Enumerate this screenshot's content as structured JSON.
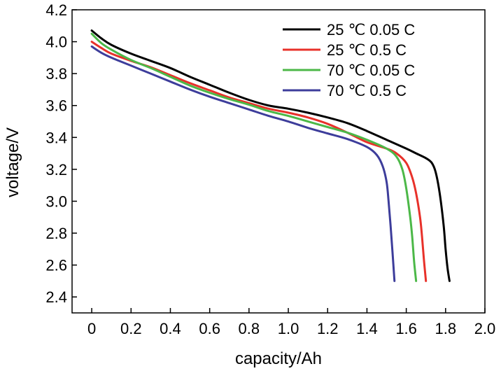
{
  "chart_data": {
    "type": "line",
    "title": "",
    "xlabel": "capacity/Ah",
    "ylabel": "voltage/V",
    "xlim": [
      -0.1,
      2.0
    ],
    "ylim": [
      2.3,
      4.2
    ],
    "xticks": [
      "0",
      "0.2",
      "0.4",
      "0.6",
      "0.8",
      "1.0",
      "1.2",
      "1.4",
      "1.6",
      "1.8",
      "2.0"
    ],
    "yticks": [
      "2.4",
      "2.6",
      "2.8",
      "3.0",
      "3.2",
      "3.4",
      "3.6",
      "3.8",
      "4.0",
      "4.2"
    ],
    "grid": false,
    "legend_position": "top-right",
    "series": [
      {
        "name": "25 ℃ 0.05 C",
        "color": "#000000",
        "x": [
          0,
          0.05,
          0.1,
          0.2,
          0.3,
          0.4,
          0.5,
          0.6,
          0.7,
          0.8,
          0.9,
          1.0,
          1.1,
          1.2,
          1.3,
          1.4,
          1.5,
          1.6,
          1.65,
          1.7,
          1.73,
          1.75,
          1.77,
          1.79,
          1.8,
          1.81,
          1.82
        ],
        "y": [
          4.07,
          4.02,
          3.98,
          3.925,
          3.88,
          3.835,
          3.78,
          3.73,
          3.68,
          3.635,
          3.6,
          3.58,
          3.555,
          3.525,
          3.49,
          3.44,
          3.385,
          3.33,
          3.3,
          3.27,
          3.24,
          3.18,
          3.05,
          2.85,
          2.7,
          2.58,
          2.5
        ]
      },
      {
        "name": "25 ℃ 0.5 C",
        "color": "#e8312a",
        "x": [
          0,
          0.05,
          0.1,
          0.2,
          0.3,
          0.4,
          0.5,
          0.6,
          0.7,
          0.8,
          0.9,
          1.0,
          1.1,
          1.2,
          1.3,
          1.4,
          1.5,
          1.55,
          1.6,
          1.63,
          1.65,
          1.67,
          1.68,
          1.69,
          1.7
        ],
        "y": [
          4.0,
          3.96,
          3.925,
          3.88,
          3.84,
          3.79,
          3.74,
          3.695,
          3.65,
          3.615,
          3.58,
          3.555,
          3.525,
          3.485,
          3.43,
          3.37,
          3.33,
          3.3,
          3.24,
          3.15,
          3.05,
          2.9,
          2.78,
          2.63,
          2.5
        ]
      },
      {
        "name": "70 ℃ 0.05 C",
        "color": "#4cb848",
        "x": [
          0,
          0.05,
          0.1,
          0.2,
          0.3,
          0.4,
          0.5,
          0.6,
          0.7,
          0.8,
          0.9,
          1.0,
          1.1,
          1.2,
          1.3,
          1.4,
          1.5,
          1.55,
          1.58,
          1.6,
          1.62,
          1.63,
          1.64,
          1.65
        ],
        "y": [
          4.05,
          3.99,
          3.95,
          3.885,
          3.835,
          3.78,
          3.725,
          3.68,
          3.64,
          3.605,
          3.565,
          3.535,
          3.5,
          3.465,
          3.43,
          3.385,
          3.33,
          3.28,
          3.2,
          3.08,
          2.9,
          2.78,
          2.62,
          2.5
        ]
      },
      {
        "name": "70 ℃ 0.5 C",
        "color": "#3d3d9b",
        "x": [
          0,
          0.05,
          0.1,
          0.2,
          0.3,
          0.4,
          0.5,
          0.6,
          0.7,
          0.8,
          0.9,
          1.0,
          1.1,
          1.2,
          1.3,
          1.4,
          1.45,
          1.48,
          1.5,
          1.51,
          1.52,
          1.53,
          1.54
        ],
        "y": [
          3.97,
          3.93,
          3.9,
          3.85,
          3.8,
          3.75,
          3.7,
          3.655,
          3.615,
          3.575,
          3.535,
          3.5,
          3.46,
          3.425,
          3.39,
          3.34,
          3.29,
          3.22,
          3.12,
          3.0,
          2.85,
          2.68,
          2.5
        ]
      }
    ]
  }
}
